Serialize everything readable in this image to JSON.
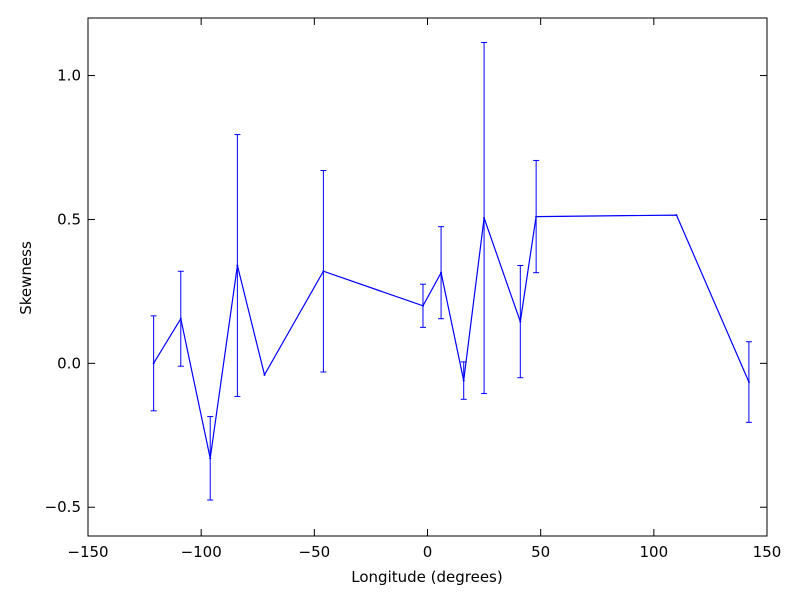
{
  "chart_data": {
    "type": "line",
    "title": "",
    "xlabel": "Longitude (degrees)",
    "ylabel": "Skewness",
    "xlim": [
      -150,
      150
    ],
    "ylim": [
      -0.6,
      1.2
    ],
    "xticks": [
      -150,
      -100,
      -50,
      0,
      50,
      100,
      150
    ],
    "xtick_labels": [
      "−150",
      "−100",
      "−50",
      "0",
      "50",
      "100",
      "150"
    ],
    "yticks": [
      -0.5,
      0.0,
      0.5,
      1.0
    ],
    "ytick_labels": [
      "−0.5",
      "0.0",
      "0.5",
      "1.0"
    ],
    "grid": false,
    "legend": "none",
    "line_color": "#0000ff",
    "series": [
      {
        "points": [
          {
            "x": -121,
            "y": 0.0,
            "err": 0.165
          },
          {
            "x": -109,
            "y": 0.155,
            "err": 0.165
          },
          {
            "x": -96,
            "y": -0.33,
            "err": 0.145
          },
          {
            "x": -84,
            "y": 0.34,
            "err": 0.455
          },
          {
            "x": -72,
            "y": -0.04,
            "err": 0.0
          },
          {
            "x": -46,
            "y": 0.32,
            "err": 0.35
          },
          {
            "x": -2,
            "y": 0.2,
            "err": 0.075
          },
          {
            "x": 6,
            "y": 0.315,
            "err": 0.16
          },
          {
            "x": 16,
            "y": -0.06,
            "err": 0.065
          },
          {
            "x": 25,
            "y": 0.505,
            "err": 0.61
          },
          {
            "x": 41,
            "y": 0.145,
            "err": 0.195
          },
          {
            "x": 48,
            "y": 0.51,
            "err": 0.195
          },
          {
            "x": 110,
            "y": 0.515,
            "err": 0.0
          },
          {
            "x": 142,
            "y": -0.065,
            "err": 0.14
          }
        ]
      }
    ]
  }
}
